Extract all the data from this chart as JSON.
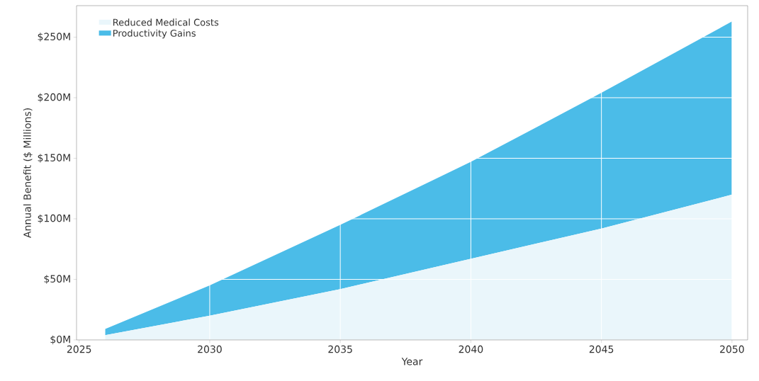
{
  "chart_data": {
    "type": "area",
    "stacked": true,
    "xlabel": "Year",
    "ylabel": "Annual Benefit ($ Millions)",
    "x": [
      2026,
      2030,
      2035,
      2040,
      2045,
      2050
    ],
    "series": [
      {
        "name": "Reduced Medical Costs",
        "color": "#eaf6fb",
        "values": [
          4,
          20,
          42,
          67,
          92,
          120
        ]
      },
      {
        "name": "Productivity Gains",
        "color": "#4bbce8",
        "values": [
          5,
          25,
          53,
          80,
          112,
          143
        ]
      }
    ],
    "xlim": [
      2024.9,
      2050.6
    ],
    "ylim": [
      0,
      276
    ],
    "xticks": [
      2025,
      2030,
      2035,
      2040,
      2045,
      2050
    ],
    "yticks": [
      {
        "value": 0,
        "label": "$0M"
      },
      {
        "value": 50,
        "label": "$50M"
      },
      {
        "value": 100,
        "label": "$100M"
      },
      {
        "value": 150,
        "label": "$150M"
      },
      {
        "value": 200,
        "label": "$200M"
      },
      {
        "value": 250,
        "label": "$250M"
      }
    ],
    "grid": true,
    "legend": "top left"
  }
}
